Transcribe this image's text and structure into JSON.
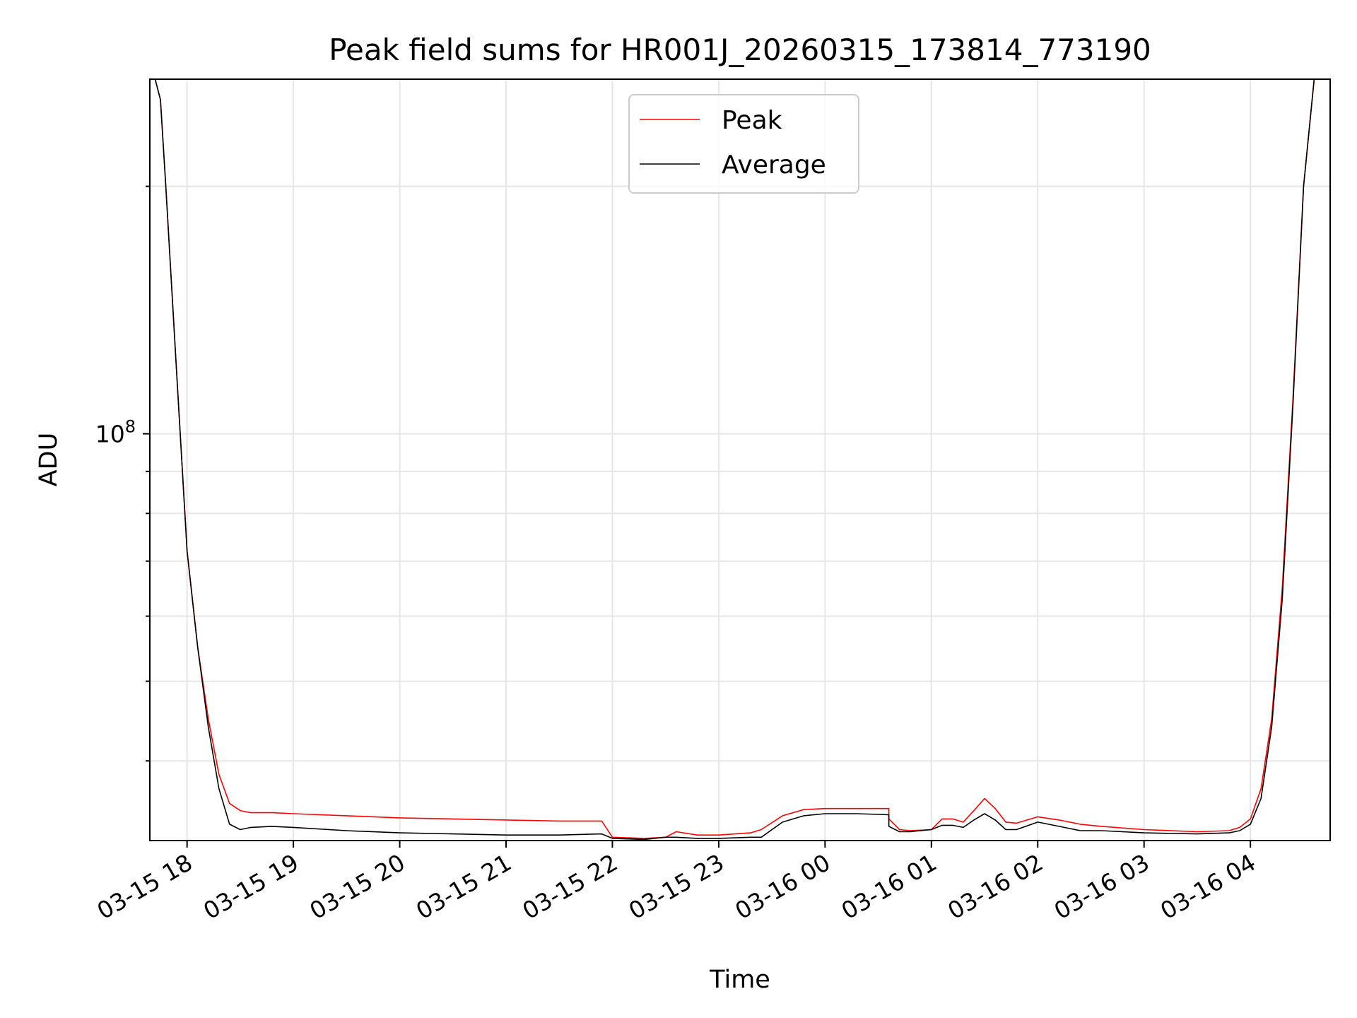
{
  "chart_data": {
    "type": "line",
    "title": "Peak field sums for HR001J_20260315_173814_773190",
    "xlabel": "Time",
    "ylabel": "ADU",
    "yscale": "log",
    "ylim": [
      32000000,
      270000000
    ],
    "xlim_hours": [
      -0.35,
      10.75
    ],
    "grid": true,
    "legend_position": "upper center",
    "x_tick_labels": [
      "03-15 18",
      "03-15 19",
      "03-15 20",
      "03-15 21",
      "03-15 22",
      "03-15 23",
      "03-16 00",
      "03-16 01",
      "03-16 02",
      "03-16 03",
      "03-16 04"
    ],
    "x_tick_hours": [
      0,
      1,
      2,
      3,
      4,
      5,
      6,
      7,
      8,
      9,
      10
    ],
    "y_major_tick": {
      "value": 100000000,
      "label_base": "10",
      "label_exp": "8"
    },
    "y_minor_ticks": [
      40000000,
      50000000,
      60000000,
      70000000,
      80000000,
      90000000,
      200000000
    ],
    "series": [
      {
        "name": "Peak",
        "color": "#ff0000",
        "x_hours": [
          -0.3,
          -0.25,
          -0.2,
          -0.1,
          0,
          0.1,
          0.2,
          0.3,
          0.4,
          0.5,
          0.6,
          0.8,
          1,
          1.5,
          2,
          2.5,
          3,
          3.5,
          3.9,
          4.0,
          4.3,
          4.5,
          4.6,
          4.8,
          5,
          5.3,
          5.4,
          5.6,
          5.8,
          6,
          6.3,
          6.6,
          6.6,
          6.7,
          6.8,
          7,
          7.1,
          7.2,
          7.3,
          7.4,
          7.5,
          7.6,
          7.7,
          7.8,
          8,
          8.2,
          8.4,
          8.6,
          9,
          9.5,
          9.8,
          9.9,
          10,
          10.1,
          10.2,
          10.3,
          10.4,
          10.5,
          10.6
        ],
        "values": [
          270000000,
          255000000,
          200000000,
          120000000,
          72000000,
          55000000,
          45000000,
          38500000,
          35500000,
          34800000,
          34600000,
          34600000,
          34500000,
          34300000,
          34100000,
          34000000,
          33900000,
          33800000,
          33800000,
          32300000,
          32200000,
          32300000,
          32800000,
          32500000,
          32500000,
          32700000,
          33000000,
          34300000,
          34900000,
          35000000,
          35000000,
          35000000,
          34000000,
          33000000,
          32900000,
          33000000,
          34000000,
          34000000,
          33700000,
          34800000,
          36000000,
          35000000,
          33700000,
          33600000,
          34200000,
          33900000,
          33500000,
          33300000,
          33000000,
          32800000,
          32900000,
          33200000,
          34000000,
          37000000,
          45000000,
          65000000,
          110000000,
          200000000,
          270000000
        ]
      },
      {
        "name": "Average",
        "color": "#000000",
        "x_hours": [
          -0.3,
          -0.25,
          -0.2,
          -0.1,
          0,
          0.1,
          0.2,
          0.3,
          0.4,
          0.5,
          0.6,
          0.8,
          1,
          1.5,
          2,
          2.5,
          3,
          3.5,
          3.9,
          4.0,
          4.3,
          4.5,
          4.6,
          4.8,
          5,
          5.3,
          5.4,
          5.6,
          5.8,
          6,
          6.3,
          6.6,
          6.6,
          6.7,
          6.8,
          7,
          7.1,
          7.2,
          7.3,
          7.4,
          7.5,
          7.6,
          7.7,
          7.8,
          8,
          8.2,
          8.4,
          8.6,
          9,
          9.5,
          9.8,
          9.9,
          10,
          10.1,
          10.2,
          10.3,
          10.4,
          10.5,
          10.6
        ],
        "values": [
          270000000,
          255000000,
          200000000,
          120000000,
          72000000,
          55000000,
          44000000,
          37000000,
          33500000,
          33000000,
          33200000,
          33300000,
          33200000,
          32900000,
          32700000,
          32600000,
          32500000,
          32500000,
          32600000,
          32200000,
          32100000,
          32300000,
          32300000,
          32200000,
          32200000,
          32300000,
          32300000,
          33700000,
          34300000,
          34500000,
          34500000,
          34400000,
          33300000,
          32800000,
          32800000,
          33000000,
          33400000,
          33400000,
          33200000,
          33900000,
          34500000,
          33900000,
          33000000,
          33000000,
          33700000,
          33300000,
          32900000,
          32900000,
          32700000,
          32600000,
          32700000,
          32900000,
          33500000,
          36000000,
          44000000,
          63000000,
          108000000,
          200000000,
          270000000
        ]
      }
    ],
    "legend": [
      {
        "label": "Peak",
        "color": "#ff0000"
      },
      {
        "label": "Average",
        "color": "#000000"
      }
    ]
  }
}
